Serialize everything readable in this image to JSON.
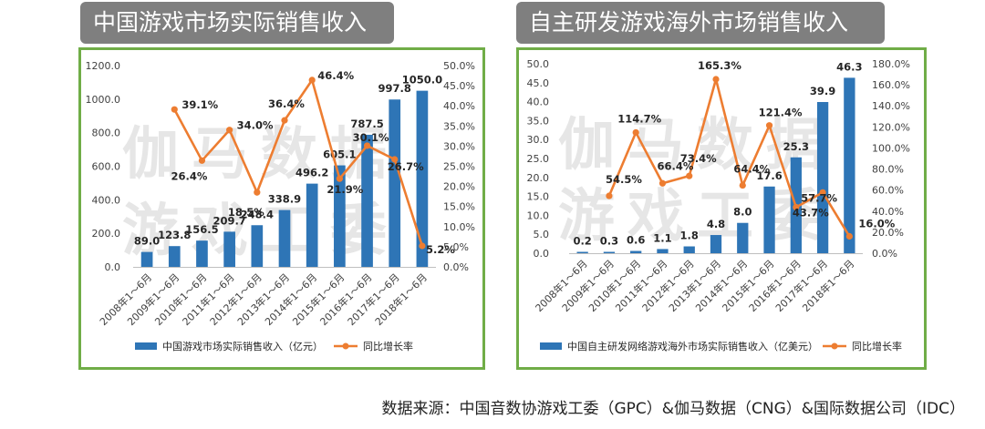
{
  "source_note": "数据来源：中国音数协游戏工委（GPC）&伽马数据（CNG）&国际数据公司（IDC）",
  "watermark": [
    "伽马数据",
    "游戏工委"
  ],
  "colors": {
    "bar": "#2e75b6",
    "line": "#ed7d31",
    "frame": "#70ad47",
    "banner": "#7f7f7f"
  },
  "chart_data": [
    {
      "type": "bar",
      "title": "中国游戏市场实际销售收入",
      "categories": [
        "2008年1～6月",
        "2009年1～6月",
        "2010年1～6月",
        "2011年1～6月",
        "2012年1～6月",
        "2013年1～6月",
        "2014年1～6月",
        "2015年1～6月",
        "2016年1～6月",
        "2017年1～6月",
        "2018年1～6月"
      ],
      "series": [
        {
          "name": "中国游戏市场实际销售收入（亿元）",
          "kind": "bar",
          "axis": "left",
          "values": [
            89.0,
            123.8,
            156.5,
            209.7,
            248.4,
            338.9,
            496.2,
            605.1,
            787.5,
            997.8,
            1050.0
          ],
          "labels": [
            "89.0",
            "123.8",
            "156.5",
            "209.7",
            "248.4",
            "338.9",
            "496.2",
            "605.1",
            "787.5",
            "997.8",
            "1050.0"
          ]
        },
        {
          "name": "同比增长率",
          "kind": "line",
          "axis": "right",
          "values": [
            null,
            39.1,
            26.4,
            34.0,
            18.5,
            36.4,
            46.4,
            21.9,
            30.1,
            26.7,
            5.2
          ],
          "labels": [
            null,
            "39.1%",
            "26.4%",
            "34.0%",
            "18.5%",
            "36.4%",
            "46.4%",
            "21.9%",
            "30.1%",
            "26.7%",
            "5.2%"
          ]
        }
      ],
      "y_left": {
        "min": 0,
        "max": 1200,
        "step": 200,
        "ticks": [
          "0.0",
          "200.0",
          "400.0",
          "600.0",
          "800.0",
          "1000.0",
          "1200.0"
        ]
      },
      "y_right": {
        "min": 0,
        "max": 50,
        "step": 5,
        "ticks": [
          "0.0%",
          "5.0%",
          "10.0%",
          "15.0%",
          "20.0%",
          "25.0%",
          "30.0%",
          "35.0%",
          "40.0%",
          "45.0%",
          "50.0%"
        ]
      },
      "grid": false,
      "legend": "bottom"
    },
    {
      "type": "bar",
      "title": "自主研发游戏海外市场销售收入",
      "categories": [
        "2008年1～6月",
        "2009年1～6月",
        "2010年1～6月",
        "2011年1～6月",
        "2012年1～6月",
        "2013年1～6月",
        "2014年1～6月",
        "2015年1～6月",
        "2016年1～6月",
        "2017年1～6月",
        "2018年1～6月"
      ],
      "series": [
        {
          "name": "中国自主研发网络游戏海外市场实际销售收入（亿美元）",
          "kind": "bar",
          "axis": "left",
          "values": [
            0.2,
            0.3,
            0.6,
            1.1,
            1.8,
            4.8,
            8.0,
            17.6,
            25.3,
            39.9,
            46.3
          ],
          "labels": [
            "0.2",
            "0.3",
            "0.6",
            "1.1",
            "1.8",
            "4.8",
            "8.0",
            "17.6",
            "25.3",
            "39.9",
            "46.3"
          ]
        },
        {
          "name": "同比增长率",
          "kind": "line",
          "axis": "right",
          "values": [
            null,
            54.5,
            114.7,
            66.4,
            73.4,
            165.3,
            64.4,
            121.4,
            43.7,
            57.7,
            16.0
          ],
          "labels": [
            null,
            "54.5%",
            "114.7%",
            "66.4%",
            "73.4%",
            "165.3%",
            "64.4%",
            "121.4%",
            "43.7%",
            "57.7%",
            "16.0%"
          ]
        }
      ],
      "y_left": {
        "min": 0,
        "max": 50,
        "step": 5,
        "ticks": [
          "0.0",
          "5.0",
          "10.0",
          "15.0",
          "20.0",
          "25.0",
          "30.0",
          "35.0",
          "40.0",
          "45.0",
          "50.0"
        ]
      },
      "y_right": {
        "min": 0,
        "max": 180,
        "step": 20,
        "ticks": [
          "0.0%",
          "20.0%",
          "40.0%",
          "60.0%",
          "80.0%",
          "100.0%",
          "120.0%",
          "140.0%",
          "160.0%",
          "180.0%"
        ]
      },
      "grid": false,
      "legend": "bottom"
    }
  ]
}
